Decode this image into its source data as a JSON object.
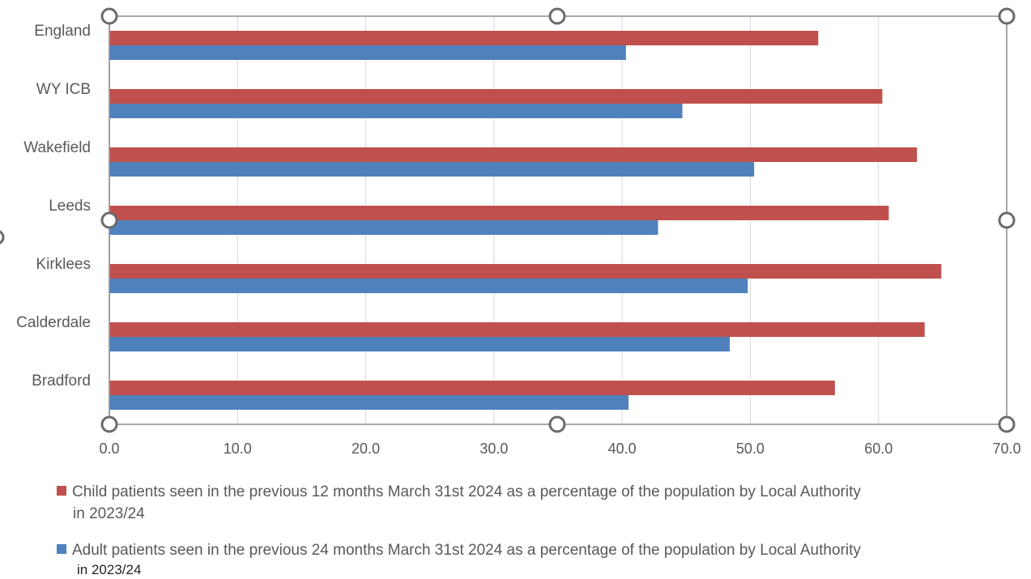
{
  "chart_data": {
    "type": "bar",
    "orientation": "horizontal",
    "categories": [
      "England",
      "WY ICB",
      "Wakefield",
      "Leeds",
      "Kirklees",
      "Calderdale",
      "Bradford"
    ],
    "series": [
      {
        "name": "Child patients seen in the previous 12 months March 31st 2024 as a percentage of the population by Local Authority in 2023/24",
        "legend_line1": "Child patients seen in the previous 12 months March 31st 2024 as a percentage of the population by Local Authority",
        "legend_line2": "in 2023/24",
        "color": "#c0504d",
        "values": [
          55.3,
          60.3,
          63.0,
          60.8,
          64.9,
          63.6,
          56.6
        ]
      },
      {
        "name": "Adult patients seen in the previous 24 months March 31st 2024 as a percentage of the population by Local Authority in 2023/24",
        "legend_line1": "Adult patients seen in the previous 24 months March 31st 2024 as a percentage of the population by Local Authority",
        "legend_line2": "in 2023/24",
        "color": "#4f81bd",
        "values": [
          40.3,
          44.7,
          50.3,
          42.8,
          49.8,
          48.4,
          40.5
        ]
      }
    ],
    "xlim": [
      0,
      70
    ],
    "xticks": [
      "0.0",
      "10.0",
      "20.0",
      "30.0",
      "40.0",
      "50.0",
      "60.0",
      "70.0"
    ],
    "grid": true,
    "legend_position": "bottom"
  }
}
